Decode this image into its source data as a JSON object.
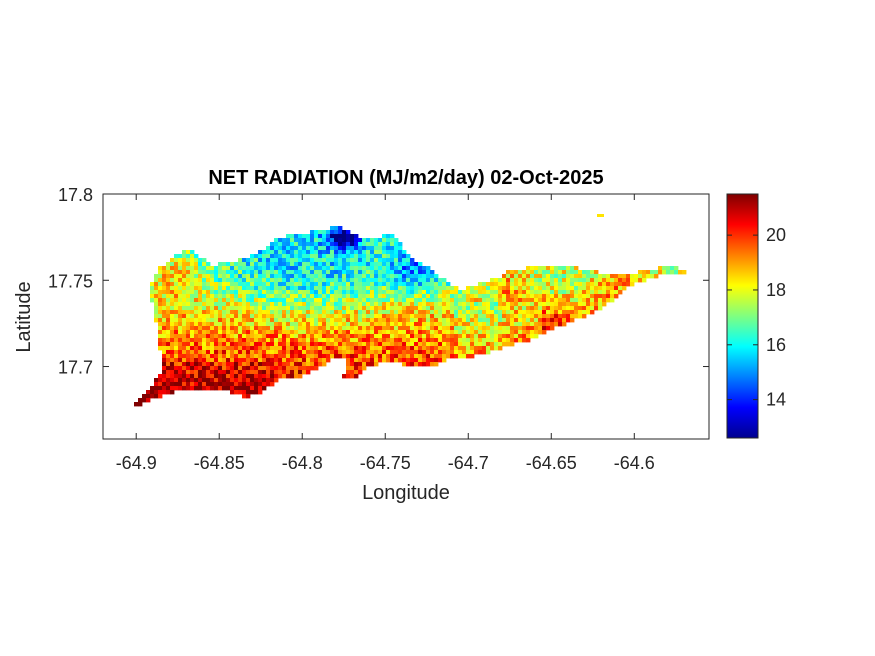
{
  "chart_data": {
    "type": "heatmap",
    "title": "NET RADIATION (MJ/m2/day) 02-Oct-2025",
    "xlabel": "Longitude",
    "ylabel": "Latitude",
    "xlim": [
      -64.92,
      -64.555
    ],
    "ylim": [
      17.658,
      17.8
    ],
    "x_ticks": [
      -64.9,
      -64.85,
      -64.8,
      -64.75,
      -64.7,
      -64.65,
      -64.6
    ],
    "x_tick_labels": [
      "-64.9",
      "-64.85",
      "-64.8",
      "-64.75",
      "-64.7",
      "-64.65",
      "-64.6"
    ],
    "y_ticks": [
      17.7,
      17.75,
      17.8
    ],
    "y_tick_labels": [
      "17.7",
      "17.75",
      "17.8"
    ],
    "colorbar": {
      "colormap": "jet",
      "range": [
        12.6,
        21.5
      ],
      "ticks": [
        14,
        16,
        18,
        20
      ],
      "tick_labels": [
        "14",
        "16",
        "18",
        "20"
      ]
    },
    "grid": false,
    "legend": "none",
    "notes_visible": "island of St. Croix; southwest and south coast mostly 19-21, north-central interior 15-17, northern tip near -64.78 about 13-14, eastern peninsula mostly 18-20"
  }
}
